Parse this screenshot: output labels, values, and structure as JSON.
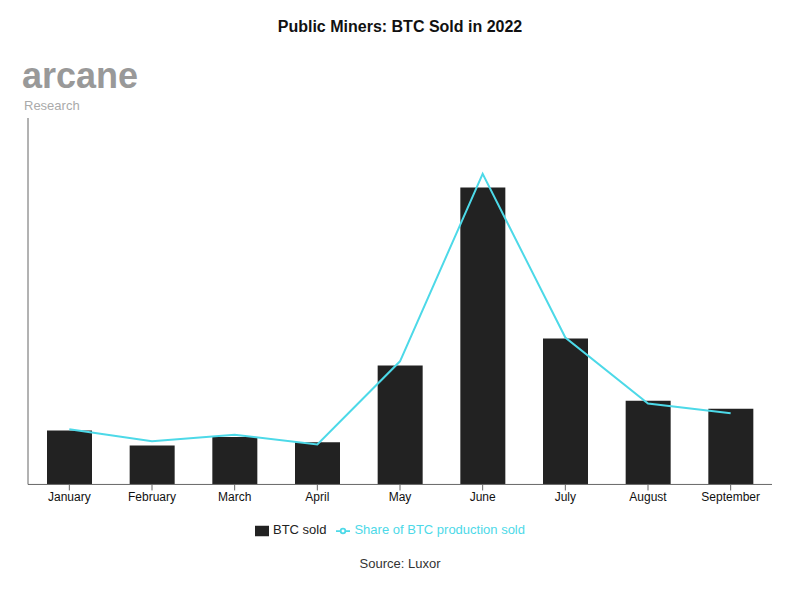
{
  "chart_data": {
    "type": "bar",
    "title": "Public Miners: BTC Sold in 2022",
    "categories": [
      "January",
      "February",
      "March",
      "April",
      "May",
      "June",
      "July",
      "August",
      "September"
    ],
    "series": [
      {
        "name": "BTC sold",
        "type": "bar",
        "color": "#222222",
        "values": [
          1.0,
          0.72,
          0.88,
          0.78,
          2.2,
          5.5,
          2.7,
          1.55,
          1.4
        ]
      },
      {
        "name": "Share of BTC production sold",
        "type": "line",
        "color": "#4dd9e8",
        "values": [
          1.02,
          0.8,
          0.92,
          0.74,
          2.28,
          5.75,
          2.72,
          1.5,
          1.32
        ]
      }
    ],
    "ylim": [
      0,
      6.785
    ],
    "tick_labels": "x",
    "grid": false,
    "legend": "bottom",
    "annotations": [
      "arcane",
      "Research",
      "Source: Luxor"
    ]
  }
}
